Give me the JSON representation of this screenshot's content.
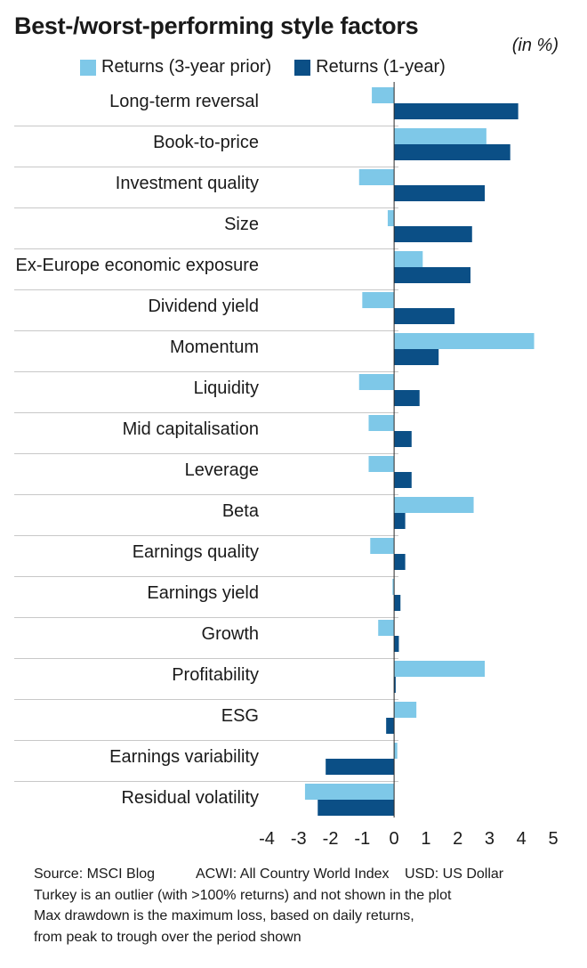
{
  "header": {
    "title": "Best-/worst-performing style factors",
    "unit": "(in %)"
  },
  "legend": [
    {
      "label": "Returns (3-year prior)",
      "color": "#7ec8e8"
    },
    {
      "label": "Returns (1-year)",
      "color": "#0b4f86"
    }
  ],
  "chart_data": {
    "type": "bar",
    "orientation": "horizontal",
    "categories": [
      "Long-term reversal",
      "Book-to-price",
      "Investment quality",
      "Size",
      "Ex-Europe economic exposure",
      "Dividend yield",
      "Momentum",
      "Liquidity",
      "Mid capitalisation",
      "Leverage",
      "Beta",
      "Earnings quality",
      "Earnings yield",
      "Growth",
      "Profitability",
      "ESG",
      "Earnings variability",
      "Residual volatility"
    ],
    "series": [
      {
        "name": "Returns (3-year prior)",
        "color": "#7ec8e8",
        "values": [
          -0.7,
          2.9,
          -1.1,
          -0.2,
          0.9,
          -1.0,
          4.4,
          -1.1,
          -0.8,
          -0.8,
          2.5,
          -0.75,
          -0.05,
          -0.5,
          2.85,
          0.7,
          0.1,
          -2.8
        ]
      },
      {
        "name": "Returns (1-year)",
        "color": "#0b4f86",
        "values": [
          3.9,
          3.65,
          2.85,
          2.45,
          2.4,
          1.9,
          1.4,
          0.8,
          0.55,
          0.55,
          0.35,
          0.35,
          0.2,
          0.15,
          0.05,
          -0.25,
          -2.15,
          -2.4
        ]
      }
    ],
    "xlim": [
      -4,
      5
    ],
    "xticks": [
      "-4",
      "-3",
      "-2",
      "-1",
      "0",
      "1",
      "2",
      "3",
      "4",
      "5"
    ],
    "grid": false,
    "legend_position": "top"
  },
  "footer": {
    "source": "Source: MSCI Blog",
    "acwi": "ACWI: All Country World Index",
    "usd": "USD: US Dollar",
    "note1": "Turkey is an outlier (with >100% returns) and not shown in the plot",
    "note2": "Max drawdown is the maximum loss, based on daily returns,",
    "note3": "from peak to trough over the period shown"
  }
}
